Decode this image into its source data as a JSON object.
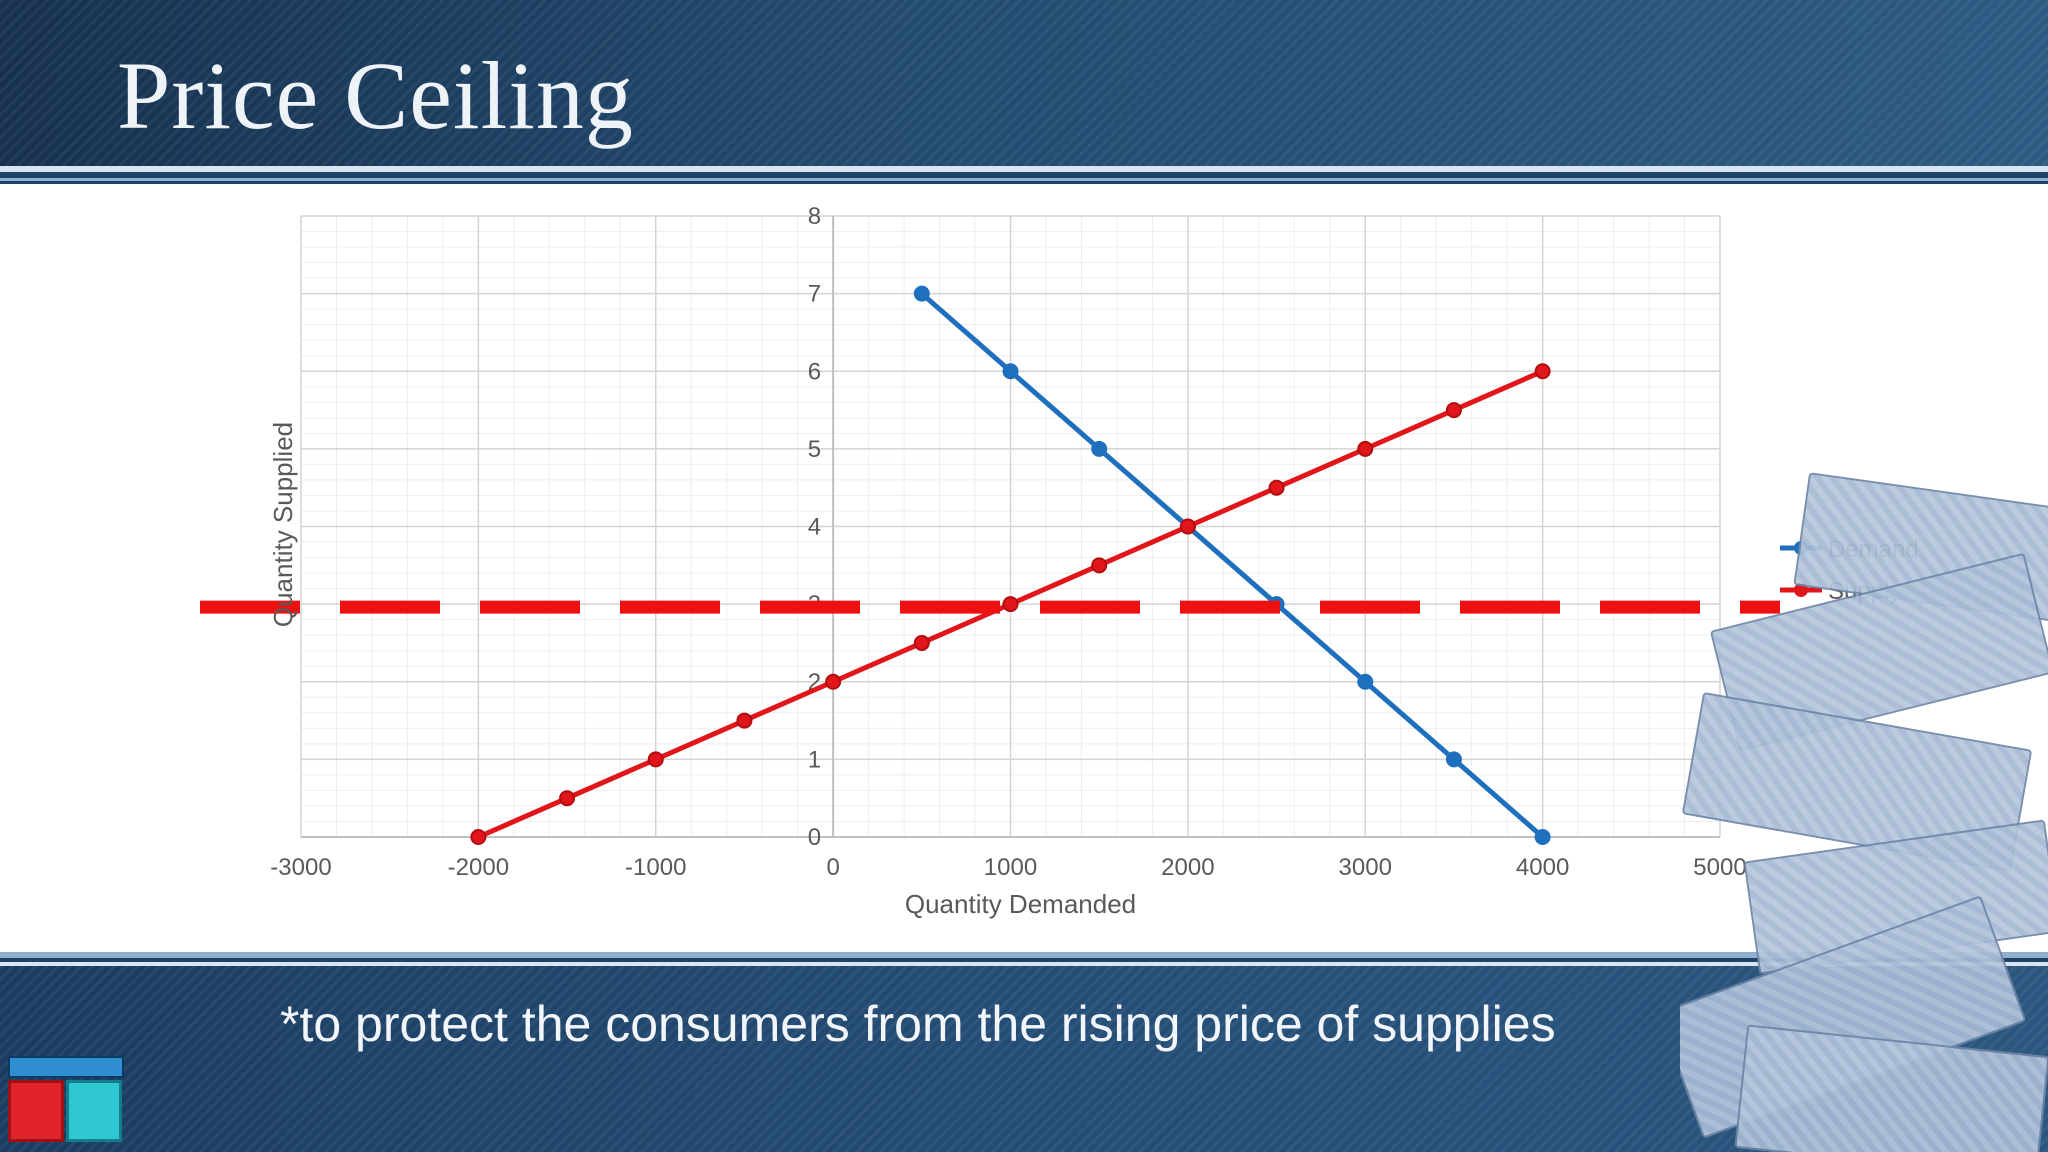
{
  "slide": {
    "title": "Price Ceiling",
    "subtitle": "*to protect the consumers from the rising price of supplies"
  },
  "chart_data": {
    "type": "line",
    "xlabel": "Quantity Demanded",
    "ylabel": "Quantity Supplied",
    "xlim": [
      -3000,
      5000
    ],
    "ylim": [
      0,
      8
    ],
    "x_ticks": [
      "-3000",
      "-2000",
      "-1000",
      "0",
      "1000",
      "2000",
      "3000",
      "4000",
      "5000"
    ],
    "y_ticks": [
      "0",
      "1",
      "2",
      "3",
      "4",
      "5",
      "6",
      "7",
      "8"
    ],
    "grid": true,
    "legend_position": "right",
    "series": [
      {
        "name": "Demand",
        "color": "#1f6fbf",
        "x": [
          500,
          1000,
          1500,
          2000,
          2500,
          3000,
          3500,
          4000
        ],
        "y": [
          7,
          6,
          5,
          4,
          3,
          2,
          1,
          0
        ]
      },
      {
        "name": "Supply",
        "color": "#e0161b",
        "x": [
          -2000,
          -1500,
          -1000,
          -500,
          0,
          500,
          1000,
          1500,
          2000,
          2500,
          3000,
          3500,
          4000
        ],
        "y": [
          0,
          0.5,
          1,
          1.5,
          2,
          2.5,
          3,
          3.5,
          4,
          4.5,
          5,
          5.5,
          6
        ]
      }
    ],
    "price_ceiling": {
      "y": 3,
      "color": "#ee1111",
      "style": "dashed"
    }
  },
  "decor": {
    "icon": "money-bills-icon",
    "logo": "template-logo-icon"
  }
}
